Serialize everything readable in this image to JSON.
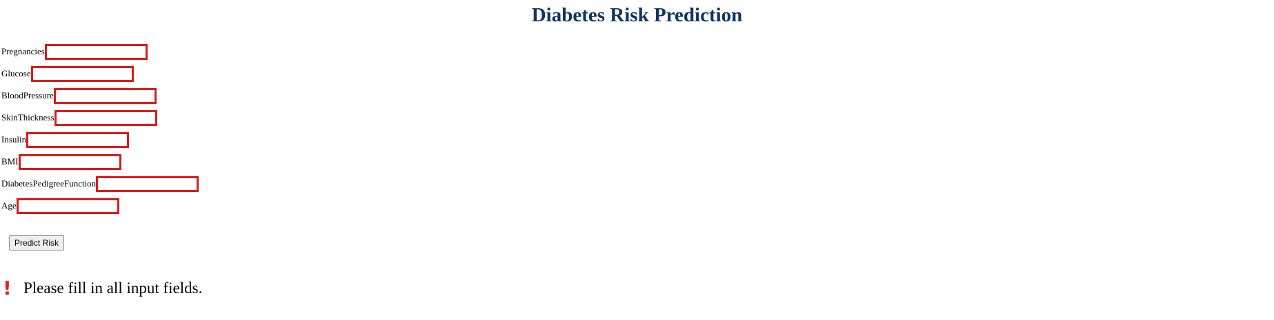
{
  "title": "Diabetes Risk Prediction",
  "form": {
    "fields": [
      {
        "label": "Pregnancies",
        "value": ""
      },
      {
        "label": "Glucose",
        "value": ""
      },
      {
        "label": "BloodPressure",
        "value": ""
      },
      {
        "label": "SkinThickness",
        "value": ""
      },
      {
        "label": "Insulin",
        "value": ""
      },
      {
        "label": "BMI",
        "value": ""
      },
      {
        "label": "DiabetesPedigreeFunction",
        "value": ""
      },
      {
        "label": "Age",
        "value": ""
      }
    ],
    "submit_label": "Predict Risk"
  },
  "message": {
    "icon": "exclamation-icon",
    "text": "Please fill in all input fields."
  },
  "colors": {
    "title": "#0f3563",
    "field_border": "#d91b1b",
    "warning": "#e22127"
  }
}
